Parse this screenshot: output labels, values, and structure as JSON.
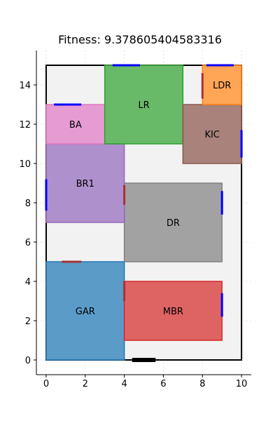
{
  "chart_data": {
    "type": "floorplan",
    "title": "Fitness: 9.378605404583316",
    "xlim": [
      -0.5,
      10.5
    ],
    "ylim": [
      -0.75,
      15.75
    ],
    "xticks": [
      0,
      2,
      4,
      6,
      8,
      10
    ],
    "yticks": [
      0,
      2,
      4,
      6,
      8,
      10,
      12,
      14
    ],
    "grid": true,
    "boundary": {
      "x": 0,
      "y": 0,
      "w": 10,
      "h": 15,
      "fill": "#f2f2f2",
      "stroke": "#000000"
    },
    "rooms": [
      {
        "label": "GAR",
        "x": 0,
        "y": 0,
        "w": 4,
        "h": 5,
        "fill": "#5a9bc8",
        "stroke": "#1f77b4"
      },
      {
        "label": "MBR",
        "x": 4,
        "y": 1,
        "w": 5,
        "h": 3,
        "fill": "#de6464",
        "stroke": "#d62728"
      },
      {
        "label": "DR",
        "x": 4,
        "y": 5,
        "w": 5,
        "h": 4,
        "fill": "#a2a2a2",
        "stroke": "#7f7f7f"
      },
      {
        "label": "BR1",
        "x": 0,
        "y": 7,
        "w": 4,
        "h": 4,
        "fill": "#ae90cc",
        "stroke": "#9467bd"
      },
      {
        "label": "BA",
        "x": 0,
        "y": 11,
        "w": 3,
        "h": 2,
        "fill": "#e69bd3",
        "stroke": "#e377c2"
      },
      {
        "label": "LR",
        "x": 3,
        "y": 11,
        "w": 4,
        "h": 4,
        "fill": "#68b968",
        "stroke": "#2ca02c"
      },
      {
        "label": "KIC",
        "x": 7,
        "y": 10,
        "w": 3,
        "h": 3,
        "fill": "#a8827b",
        "stroke": "#8c564b"
      },
      {
        "label": "LDR",
        "x": 8,
        "y": 13,
        "w": 2,
        "h": 2,
        "fill": "#ffa556",
        "stroke": "#ff7f0e"
      }
    ],
    "openings": [
      {
        "x1": 4.4,
        "y1": 0,
        "x2": 5.6,
        "y2": 0,
        "color": "#000000",
        "kind": "entrance"
      },
      {
        "x1": 0.8,
        "y1": 5,
        "x2": 1.8,
        "y2": 5,
        "color": "#a83232",
        "kind": "door"
      },
      {
        "x1": 4,
        "y1": 3,
        "x2": 4,
        "y2": 4,
        "color": "#a83232",
        "kind": "door"
      },
      {
        "x1": 4,
        "y1": 7.9,
        "x2": 4,
        "y2": 8.9,
        "color": "#a83232",
        "kind": "door"
      },
      {
        "x1": 8,
        "y1": 13.3,
        "x2": 8,
        "y2": 14.6,
        "color": "#a83232",
        "kind": "door"
      },
      {
        "x1": 0.4,
        "y1": 13,
        "x2": 1.8,
        "y2": 13,
        "color": "#0000ff",
        "kind": "window"
      },
      {
        "x1": 3.4,
        "y1": 15,
        "x2": 4.8,
        "y2": 15,
        "color": "#0000ff",
        "kind": "window"
      },
      {
        "x1": 8.2,
        "y1": 15,
        "x2": 9.6,
        "y2": 15,
        "color": "#0000ff",
        "kind": "window"
      },
      {
        "x1": 10,
        "y1": 10.3,
        "x2": 10,
        "y2": 11.7,
        "color": "#0000ff",
        "kind": "window"
      },
      {
        "x1": 9,
        "y1": 7.4,
        "x2": 9,
        "y2": 8.6,
        "color": "#0000ff",
        "kind": "window"
      },
      {
        "x1": 9,
        "y1": 2.2,
        "x2": 9,
        "y2": 3.4,
        "color": "#0000ff",
        "kind": "window"
      },
      {
        "x1": 0,
        "y1": 7.6,
        "x2": 0,
        "y2": 9.2,
        "color": "#0000ff",
        "kind": "window"
      }
    ]
  }
}
